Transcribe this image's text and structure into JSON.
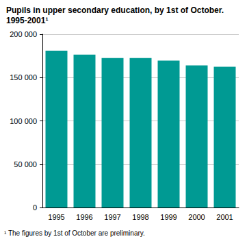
{
  "chart_data": {
    "type": "bar",
    "title": "Pupils in upper secondary education, by 1st of October.\n1995-2001¹",
    "annotations": [
      "¹ The figures by 1st of October are preliminary."
    ],
    "categories": [
      "1995",
      "1996",
      "1997",
      "1998",
      "1999",
      "2000",
      "2001"
    ],
    "values": [
      181000,
      176500,
      172500,
      172500,
      169500,
      164000,
      162500
    ],
    "color": "#009a93",
    "ylim": [
      0,
      200000
    ],
    "yticks": [
      0,
      {
        "value": 50000,
        "label": "50 000"
      },
      {
        "value": 100000,
        "label": "100 000"
      },
      {
        "value": 150000,
        "label": "150 000"
      },
      {
        "value": 200000,
        "label": "200 000"
      }
    ],
    "grid": true
  }
}
